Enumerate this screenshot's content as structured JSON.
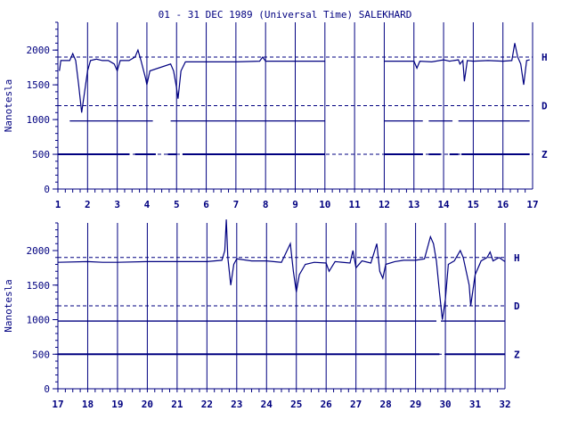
{
  "title": "01 - 31 DEC 1989 (Universal Time) SALEKHARD",
  "colors": {
    "ink": "#000080",
    "background": "#ffffff"
  },
  "chart_data": [
    {
      "type": "line",
      "panel": "top",
      "ylabel": "Nanotesla",
      "ylim": [
        0,
        2400
      ],
      "y_ticks": [
        0,
        500,
        1000,
        1500,
        2000
      ],
      "xlim": [
        1,
        17
      ],
      "x_ticks": [
        1,
        2,
        3,
        4,
        5,
        6,
        7,
        8,
        9,
        10,
        11,
        12,
        13,
        14,
        15,
        16,
        17
      ],
      "grid": "vertical lines at each day",
      "reference_lines": [
        1900,
        1200,
        500
      ],
      "series": [
        {
          "name": "H",
          "points": [
            [
              1.05,
              1700
            ],
            [
              1.1,
              1850
            ],
            [
              1.4,
              1850
            ],
            [
              1.5,
              1950
            ],
            [
              1.6,
              1850
            ],
            [
              1.7,
              1500
            ],
            [
              1.8,
              1100
            ],
            [
              1.9,
              1400
            ],
            [
              2.0,
              1700
            ],
            [
              2.1,
              1850
            ],
            [
              2.3,
              1870
            ],
            [
              2.5,
              1850
            ],
            [
              2.7,
              1850
            ],
            [
              2.9,
              1800
            ],
            [
              3.0,
              1700
            ],
            [
              3.1,
              1850
            ],
            [
              3.4,
              1850
            ],
            [
              3.6,
              1900
            ],
            [
              3.7,
              2000
            ],
            [
              3.8,
              1850
            ],
            [
              3.95,
              1600
            ],
            [
              4.0,
              1500
            ],
            [
              4.1,
              1700
            ],
            [
              4.8,
              1800
            ],
            [
              4.9,
              1700
            ],
            [
              5.0,
              1450
            ],
            [
              5.05,
              1300
            ],
            [
              5.15,
              1700
            ],
            [
              5.3,
              1830
            ],
            [
              6.0,
              1830
            ],
            [
              7.0,
              1830
            ],
            [
              7.8,
              1840
            ],
            [
              7.9,
              1900
            ],
            [
              8.0,
              1840
            ],
            [
              8.5,
              1840
            ],
            [
              9.0,
              1840
            ],
            [
              9.5,
              1840
            ],
            [
              10.0,
              1840
            ]
          ],
          "gap_after": 10.0,
          "points2": [
            [
              12.0,
              1840
            ],
            [
              12.5,
              1840
            ],
            [
              13.0,
              1840
            ],
            [
              13.1,
              1740
            ],
            [
              13.2,
              1840
            ],
            [
              13.6,
              1830
            ],
            [
              14.0,
              1860
            ],
            [
              14.2,
              1840
            ],
            [
              14.5,
              1860
            ],
            [
              14.55,
              1800
            ],
            [
              14.65,
              1850
            ],
            [
              14.7,
              1550
            ],
            [
              14.8,
              1850
            ],
            [
              15.0,
              1840
            ],
            [
              15.5,
              1850
            ],
            [
              16.0,
              1840
            ],
            [
              16.3,
              1850
            ],
            [
              16.4,
              2100
            ],
            [
              16.5,
              1900
            ],
            [
              16.6,
              1800
            ],
            [
              16.7,
              1500
            ],
            [
              16.8,
              1850
            ],
            [
              16.9,
              1860
            ]
          ]
        },
        {
          "name": "D",
          "level": 980,
          "segments": [
            [
              1.4,
              4.2
            ],
            [
              4.8,
              10.0
            ],
            [
              12.0,
              13.3
            ],
            [
              13.5,
              14.3
            ],
            [
              14.5,
              16.9
            ]
          ]
        },
        {
          "name": "Z",
          "level": 500,
          "segments": [
            [
              1.0,
              3.4
            ],
            [
              3.6,
              4.3
            ],
            [
              4.7,
              5.0
            ],
            [
              5.2,
              10.0
            ],
            [
              12.0,
              13.3
            ],
            [
              13.5,
              13.9
            ],
            [
              14.2,
              14.5
            ],
            [
              14.6,
              16.9
            ]
          ]
        }
      ],
      "legend": [
        "H",
        "D",
        "Z"
      ]
    },
    {
      "type": "line",
      "panel": "bottom",
      "ylabel": "Nanotesla",
      "ylim": [
        0,
        2400
      ],
      "y_ticks": [
        0,
        500,
        1000,
        1500,
        2000
      ],
      "xlim": [
        17,
        32
      ],
      "x_ticks": [
        17,
        18,
        19,
        20,
        21,
        22,
        23,
        24,
        25,
        26,
        27,
        28,
        29,
        30,
        31,
        32
      ],
      "grid": "vertical lines at each day",
      "reference_lines": [
        1900,
        1200,
        500
      ],
      "series": [
        {
          "name": "H",
          "points": [
            [
              17.0,
              1830
            ],
            [
              18.0,
              1840
            ],
            [
              18.5,
              1830
            ],
            [
              19.0,
              1830
            ],
            [
              20.0,
              1840
            ],
            [
              21.0,
              1840
            ],
            [
              22.0,
              1840
            ],
            [
              22.5,
              1860
            ],
            [
              22.6,
              2000
            ],
            [
              22.65,
              2450
            ],
            [
              22.7,
              1900
            ],
            [
              22.8,
              1500
            ],
            [
              22.9,
              1800
            ],
            [
              23.0,
              1880
            ],
            [
              23.5,
              1850
            ],
            [
              24.0,
              1850
            ],
            [
              24.5,
              1830
            ],
            [
              24.8,
              2100
            ],
            [
              24.9,
              1700
            ],
            [
              25.0,
              1400
            ],
            [
              25.1,
              1650
            ],
            [
              25.3,
              1800
            ],
            [
              25.6,
              1830
            ],
            [
              26.0,
              1820
            ],
            [
              26.1,
              1700
            ],
            [
              26.3,
              1840
            ],
            [
              26.8,
              1820
            ],
            [
              26.9,
              2000
            ],
            [
              27.0,
              1750
            ],
            [
              27.2,
              1850
            ],
            [
              27.5,
              1820
            ],
            [
              27.7,
              2100
            ],
            [
              27.8,
              1700
            ],
            [
              27.9,
              1600
            ],
            [
              28.0,
              1800
            ],
            [
              28.3,
              1840
            ],
            [
              28.6,
              1860
            ],
            [
              29.0,
              1860
            ],
            [
              29.3,
              1880
            ],
            [
              29.5,
              2200
            ],
            [
              29.6,
              2100
            ],
            [
              29.7,
              1850
            ],
            [
              29.8,
              1400
            ],
            [
              29.9,
              1000
            ],
            [
              30.0,
              1300
            ],
            [
              30.1,
              1800
            ],
            [
              30.3,
              1850
            ],
            [
              30.5,
              2000
            ],
            [
              30.6,
              1900
            ],
            [
              30.8,
              1500
            ],
            [
              30.85,
              1200
            ],
            [
              31.0,
              1650
            ],
            [
              31.2,
              1850
            ],
            [
              31.4,
              1900
            ],
            [
              31.5,
              1980
            ],
            [
              31.6,
              1850
            ],
            [
              31.8,
              1900
            ],
            [
              32.0,
              1840
            ]
          ]
        },
        {
          "name": "D",
          "level": 980,
          "segments": [
            [
              17.0,
              29.7
            ],
            [
              29.85,
              32.0
            ]
          ]
        },
        {
          "name": "Z",
          "level": 500,
          "segments": [
            [
              17.0,
              29.8
            ],
            [
              30.0,
              32.0
            ]
          ]
        }
      ],
      "legend": [
        "H",
        "D",
        "Z"
      ]
    }
  ]
}
